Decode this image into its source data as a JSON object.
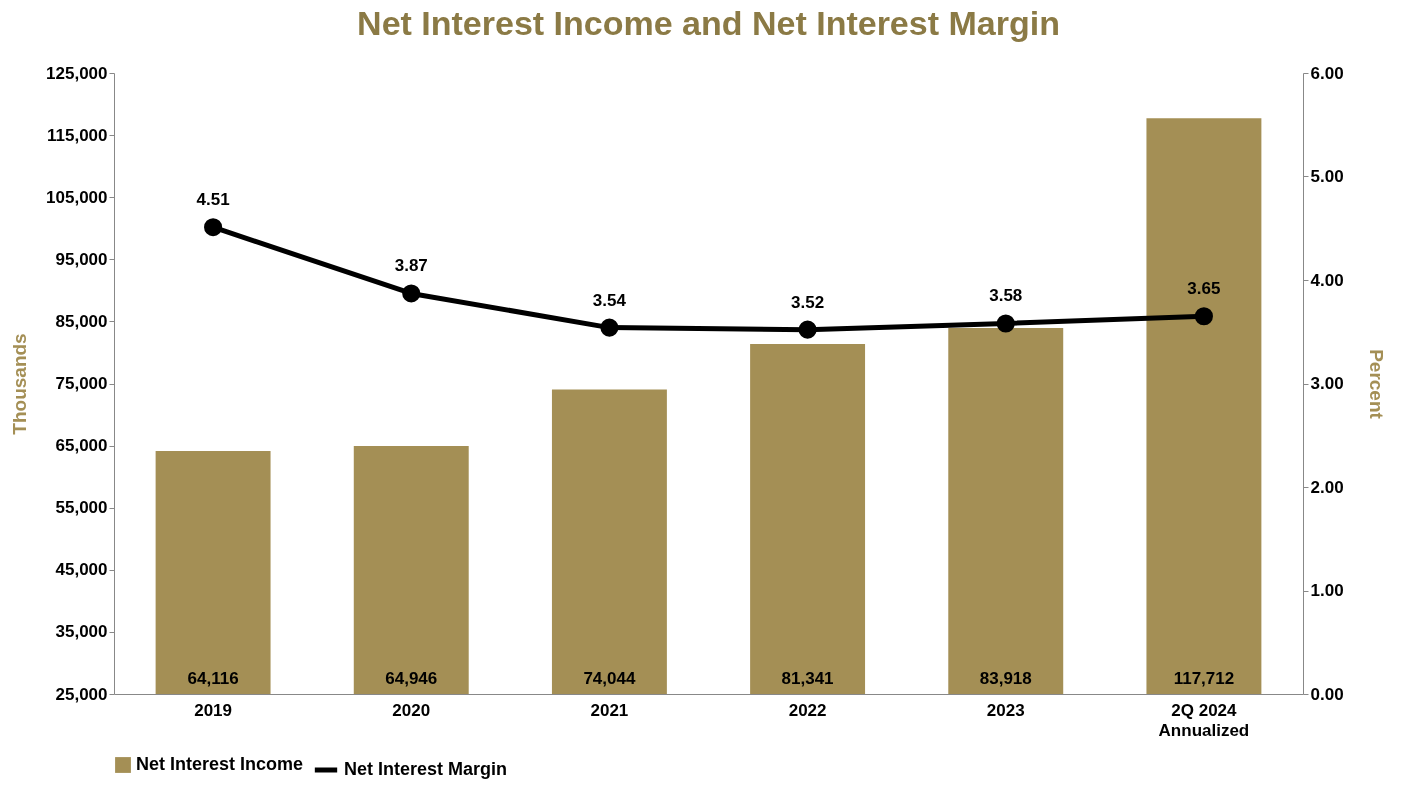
{
  "chart_data": {
    "type": "bar",
    "title": "Net Interest Income and Net Interest Margin",
    "categories": [
      "2019",
      "2020",
      "2021",
      "2022",
      "2023",
      "2Q 2024\nAnnualized"
    ],
    "series": [
      {
        "name": "Net Interest Income",
        "color": "#a48f55",
        "values": [
          64116,
          64946,
          74044,
          81341,
          83918,
          117712
        ],
        "value_labels": [
          "64,116",
          "64,946",
          "74,044",
          "81,341",
          "83,918",
          "117,712"
        ]
      },
      {
        "name": "Net Interest Margin",
        "type": "line",
        "axis": "y2",
        "color": "#000000",
        "values": [
          4.51,
          3.87,
          3.54,
          3.52,
          3.58,
          3.65
        ],
        "value_labels": [
          "4.51",
          "3.87",
          "3.54",
          "3.52",
          "3.58",
          "3.65"
        ]
      }
    ],
    "ylabel": "Thousands",
    "y2label": "Percent",
    "ylim": [
      25000,
      125000
    ],
    "yticks": [
      {
        "value": 25000,
        "label": "25,000"
      },
      {
        "value": 35000,
        "label": "35,000"
      },
      {
        "value": 45000,
        "label": "45,000"
      },
      {
        "value": 55000,
        "label": "55,000"
      },
      {
        "value": 65000,
        "label": "65,000"
      },
      {
        "value": 75000,
        "label": "75,000"
      },
      {
        "value": 85000,
        "label": "85,000"
      },
      {
        "value": 95000,
        "label": "95,000"
      },
      {
        "value": 105000,
        "label": "105,000"
      },
      {
        "value": 115000,
        "label": "115,000"
      },
      {
        "value": 125000,
        "label": "125,000"
      }
    ],
    "y2lim": [
      0,
      6
    ],
    "y2ticks": [
      {
        "value": 0,
        "label": "0.00"
      },
      {
        "value": 1,
        "label": "1.00"
      },
      {
        "value": 2,
        "label": "2.00"
      },
      {
        "value": 3,
        "label": "3.00"
      },
      {
        "value": 4,
        "label": "4.00"
      },
      {
        "value": 5,
        "label": "5.00"
      },
      {
        "value": 6,
        "label": "6.00"
      }
    ],
    "legend": "bottom",
    "grid": false,
    "marker": "circle",
    "line_style": "solid"
  }
}
